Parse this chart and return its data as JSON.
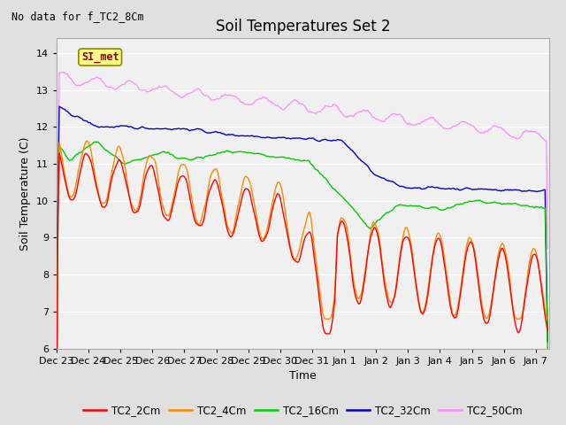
{
  "title": "Soil Temperatures Set 2",
  "subtitle": "No data for f_TC2_8Cm",
  "xlabel": "Time",
  "ylabel": "Soil Temperature (C)",
  "ylim": [
    6.0,
    14.4
  ],
  "yticks": [
    6.0,
    7.0,
    8.0,
    9.0,
    10.0,
    11.0,
    12.0,
    13.0,
    14.0
  ],
  "xlim": [
    0,
    370
  ],
  "xtick_labels": [
    "Dec 23",
    "Dec 24",
    "Dec 25",
    "Dec 26",
    "Dec 27",
    "Dec 28",
    "Dec 29",
    "Dec 30",
    "Dec 31",
    "Jan 1",
    "Jan 2",
    "Jan 3",
    "Jan 4",
    "Jan 5",
    "Jan 6",
    "Jan 7"
  ],
  "xtick_positions": [
    0,
    24,
    48,
    72,
    96,
    120,
    144,
    168,
    192,
    216,
    240,
    264,
    288,
    312,
    336,
    360
  ],
  "series_colors": {
    "TC2_2Cm": "#FF0000",
    "TC2_4Cm": "#FF8800",
    "TC2_16Cm": "#00CC00",
    "TC2_32Cm": "#0000CC",
    "TC2_50Cm": "#FF88FF"
  },
  "legend_label": "SI_met",
  "bg_color": "#E0E0E0",
  "plot_bg_color": "#F0F0F0",
  "grid_color": "#FFFFFF",
  "title_fontsize": 12,
  "axis_fontsize": 9,
  "tick_fontsize": 8
}
